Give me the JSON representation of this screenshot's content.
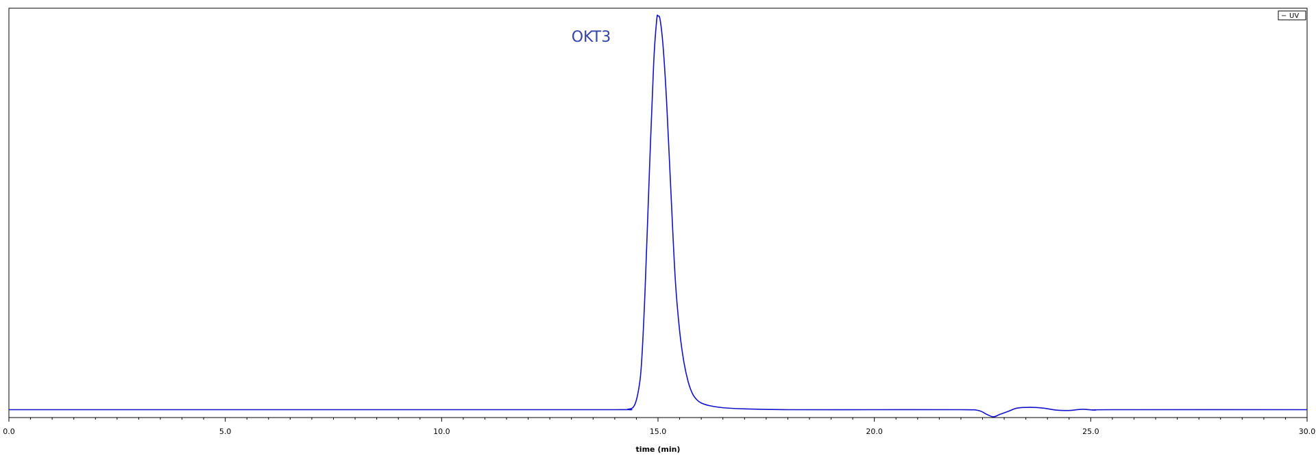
{
  "chart_data": {
    "type": "line",
    "xlabel": "time (min)",
    "ylabel": "",
    "xlim": [
      0,
      30
    ],
    "ylim": [
      -0.02,
      1.02
    ],
    "x_ticks": [
      0,
      5,
      10,
      15,
      20,
      25,
      30
    ],
    "x_tick_labels": [
      "0.0",
      "5.0",
      "10.0",
      "15.0",
      "20.0",
      "25.0",
      "30.0"
    ],
    "grid": false,
    "legend": {
      "placement": "top-right",
      "entries": [
        {
          "symbol": "−",
          "label": "UV"
        }
      ]
    },
    "annotations": [
      {
        "text": "OKT3",
        "x": 13.0,
        "y": 0.935,
        "color": "#3344aa"
      }
    ],
    "series": [
      {
        "name": "UV",
        "color": "#1010cc",
        "points": [
          [
            0.0,
            0.0
          ],
          [
            5.0,
            0.0
          ],
          [
            10.0,
            0.0
          ],
          [
            14.0,
            0.0
          ],
          [
            14.3,
            0.001
          ],
          [
            14.45,
            0.01
          ],
          [
            14.55,
            0.05
          ],
          [
            14.62,
            0.12
          ],
          [
            14.7,
            0.3
          ],
          [
            14.8,
            0.6
          ],
          [
            14.9,
            0.88
          ],
          [
            14.97,
            0.99
          ],
          [
            15.0,
            1.0
          ],
          [
            15.05,
            0.99
          ],
          [
            15.12,
            0.92
          ],
          [
            15.2,
            0.78
          ],
          [
            15.3,
            0.55
          ],
          [
            15.4,
            0.33
          ],
          [
            15.5,
            0.2
          ],
          [
            15.6,
            0.12
          ],
          [
            15.7,
            0.07
          ],
          [
            15.8,
            0.04
          ],
          [
            15.9,
            0.025
          ],
          [
            16.0,
            0.017
          ],
          [
            16.2,
            0.01
          ],
          [
            16.5,
            0.005
          ],
          [
            17.0,
            0.002
          ],
          [
            18.0,
            0.0
          ],
          [
            20.0,
            0.0
          ],
          [
            22.0,
            0.0
          ],
          [
            22.4,
            -0.002
          ],
          [
            22.6,
            -0.012
          ],
          [
            22.75,
            -0.018
          ],
          [
            22.9,
            -0.012
          ],
          [
            23.1,
            -0.004
          ],
          [
            23.3,
            0.004
          ],
          [
            23.6,
            0.006
          ],
          [
            23.9,
            0.004
          ],
          [
            24.2,
            -0.001
          ],
          [
            24.5,
            -0.002
          ],
          [
            24.8,
            0.001
          ],
          [
            25.1,
            -0.001
          ],
          [
            25.5,
            0.0
          ],
          [
            30.0,
            0.0
          ]
        ]
      }
    ]
  }
}
